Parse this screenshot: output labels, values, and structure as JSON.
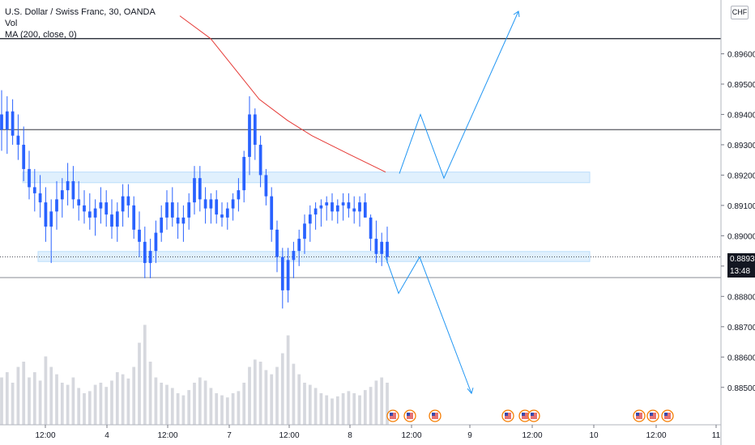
{
  "legend": {
    "title": "U.S. Dollar / Swiss Franc, 30, OANDA",
    "vol_label": "Vol",
    "ma_label": "MA (200, close, 0)"
  },
  "currency": "CHF",
  "price_tag": "0.88930",
  "time_tag": "13:48",
  "colors": {
    "up": "#2962ff",
    "volume": "#d6d8de",
    "ma": "#e53935",
    "drawing": "#2196f3",
    "zone": "#bbdefb",
    "hline": "#131722"
  },
  "chart_data": {
    "type": "candlestick",
    "y_axis": {
      "ticks": [
        "0.89600",
        "0.89500",
        "0.89400",
        "0.89300",
        "0.89200",
        "0.89100",
        "0.89000",
        "0.88900",
        "0.88800",
        "0.88700",
        "0.88600",
        "0.88500"
      ],
      "tick_values": [
        0.896,
        0.895,
        0.894,
        0.893,
        0.892,
        0.891,
        0.89,
        0.889,
        0.888,
        0.887,
        0.886,
        0.885
      ],
      "range": [
        0.8843,
        0.8974
      ]
    },
    "x_axis": {
      "ticks": [
        "12:00",
        "4",
        "12:00",
        "7",
        "12:00",
        "8",
        "12:00",
        "9",
        "12:00",
        "10",
        "12:00",
        "11"
      ]
    },
    "last_price": 0.8893,
    "horizontal_lines": [
      0.8965,
      0.8935,
      0.88862
    ],
    "dotted_line": 0.8893,
    "zones": [
      {
        "top": 0.8921,
        "bottom": 0.89175
      },
      {
        "top": 0.88948,
        "bottom": 0.88915
      }
    ],
    "bull_path": [
      0.89205,
      0.894,
      0.8919,
      0.8974
    ],
    "bear_path": [
      0.8893,
      0.8881,
      0.8893,
      0.8848
    ],
    "ma_series": [
      0.89725,
      0.8965,
      0.8955,
      0.8945,
      0.8938,
      0.8933,
      0.8927,
      0.8921
    ],
    "ohlc": [
      [
        0.894,
        0.8948,
        0.8928,
        0.8935
      ],
      [
        0.8935,
        0.8946,
        0.8927,
        0.8941
      ],
      [
        0.8941,
        0.8945,
        0.893,
        0.8933
      ],
      [
        0.8933,
        0.894,
        0.8925,
        0.893
      ],
      [
        0.893,
        0.8936,
        0.8918,
        0.8922
      ],
      [
        0.8922,
        0.8928,
        0.8912,
        0.8916
      ],
      [
        0.8916,
        0.8922,
        0.8908,
        0.8914
      ],
      [
        0.8914,
        0.892,
        0.8906,
        0.8911
      ],
      [
        0.8911,
        0.8916,
        0.8898,
        0.8903
      ],
      [
        0.8903,
        0.8912,
        0.8891,
        0.8908
      ],
      [
        0.8908,
        0.8918,
        0.8902,
        0.8912
      ],
      [
        0.8912,
        0.8919,
        0.8906,
        0.8915
      ],
      [
        0.8915,
        0.8924,
        0.891,
        0.8918
      ],
      [
        0.8918,
        0.8923,
        0.8909,
        0.8912
      ],
      [
        0.8912,
        0.8918,
        0.8905,
        0.891
      ],
      [
        0.891,
        0.8915,
        0.8904,
        0.8908
      ],
      [
        0.8908,
        0.8914,
        0.8902,
        0.8906
      ],
      [
        0.8906,
        0.8912,
        0.89,
        0.8909
      ],
      [
        0.8909,
        0.8916,
        0.8904,
        0.8911
      ],
      [
        0.8911,
        0.8915,
        0.8903,
        0.8907
      ],
      [
        0.8907,
        0.8912,
        0.8899,
        0.8903
      ],
      [
        0.8903,
        0.8911,
        0.8898,
        0.8908
      ],
      [
        0.8908,
        0.8917,
        0.8903,
        0.8913
      ],
      [
        0.8913,
        0.8917,
        0.8906,
        0.891
      ],
      [
        0.891,
        0.8913,
        0.8899,
        0.8902
      ],
      [
        0.8902,
        0.8908,
        0.8893,
        0.8898
      ],
      [
        0.8898,
        0.8903,
        0.8886,
        0.8891
      ],
      [
        0.8891,
        0.8899,
        0.8886,
        0.8895
      ],
      [
        0.8895,
        0.8905,
        0.8891,
        0.8901
      ],
      [
        0.8901,
        0.891,
        0.8898,
        0.8906
      ],
      [
        0.8906,
        0.8915,
        0.8902,
        0.8911
      ],
      [
        0.8911,
        0.8916,
        0.8903,
        0.8906
      ],
      [
        0.8906,
        0.8911,
        0.8899,
        0.8904
      ],
      [
        0.8904,
        0.891,
        0.8898,
        0.8906
      ],
      [
        0.8906,
        0.8914,
        0.8902,
        0.8911
      ],
      [
        0.8911,
        0.8923,
        0.8907,
        0.8919
      ],
      [
        0.8919,
        0.8923,
        0.8908,
        0.8912
      ],
      [
        0.8912,
        0.8916,
        0.8904,
        0.8909
      ],
      [
        0.8909,
        0.8914,
        0.8904,
        0.8912
      ],
      [
        0.8912,
        0.8915,
        0.8904,
        0.8907
      ],
      [
        0.8907,
        0.8911,
        0.8903,
        0.8906
      ],
      [
        0.8906,
        0.8911,
        0.8902,
        0.8909
      ],
      [
        0.8909,
        0.8914,
        0.8905,
        0.8912
      ],
      [
        0.8912,
        0.8919,
        0.8908,
        0.8915
      ],
      [
        0.8915,
        0.8928,
        0.8911,
        0.8926
      ],
      [
        0.8926,
        0.8946,
        0.892,
        0.894
      ],
      [
        0.894,
        0.8942,
        0.8925,
        0.893
      ],
      [
        0.893,
        0.8933,
        0.8916,
        0.892
      ],
      [
        0.892,
        0.8922,
        0.891,
        0.8913
      ],
      [
        0.8913,
        0.8916,
        0.8898,
        0.8902
      ],
      [
        0.8902,
        0.8905,
        0.8888,
        0.8893
      ],
      [
        0.8893,
        0.8896,
        0.8876,
        0.8882
      ],
      [
        0.8882,
        0.8896,
        0.8878,
        0.8892
      ],
      [
        0.8892,
        0.8898,
        0.8886,
        0.8895
      ],
      [
        0.8895,
        0.8902,
        0.889,
        0.8899
      ],
      [
        0.8899,
        0.8907,
        0.8894,
        0.8904
      ],
      [
        0.8904,
        0.891,
        0.8898,
        0.8907
      ],
      [
        0.8907,
        0.8911,
        0.8902,
        0.8909
      ],
      [
        0.8909,
        0.8912,
        0.8903,
        0.891
      ],
      [
        0.891,
        0.8913,
        0.8905,
        0.8911
      ],
      [
        0.8911,
        0.8914,
        0.8905,
        0.8908
      ],
      [
        0.8908,
        0.8912,
        0.8904,
        0.891
      ],
      [
        0.891,
        0.8914,
        0.8905,
        0.8911
      ],
      [
        0.8911,
        0.8914,
        0.8906,
        0.8909
      ],
      [
        0.8909,
        0.8913,
        0.8904,
        0.8908
      ],
      [
        0.8908,
        0.8913,
        0.8903,
        0.8911
      ],
      [
        0.8911,
        0.8914,
        0.8906,
        0.8906
      ],
      [
        0.8906,
        0.8907,
        0.8895,
        0.8899
      ],
      [
        0.8899,
        0.8905,
        0.8891,
        0.8894
      ],
      [
        0.8894,
        0.8901,
        0.889,
        0.8898
      ],
      [
        0.8898,
        0.8903,
        0.8891,
        0.8893
      ]
    ],
    "volume": [
      0.45,
      0.5,
      0.4,
      0.55,
      0.6,
      0.45,
      0.5,
      0.42,
      0.65,
      0.55,
      0.48,
      0.4,
      0.38,
      0.45,
      0.35,
      0.3,
      0.32,
      0.38,
      0.4,
      0.36,
      0.42,
      0.5,
      0.48,
      0.44,
      0.55,
      0.78,
      0.95,
      0.6,
      0.45,
      0.4,
      0.38,
      0.35,
      0.3,
      0.28,
      0.33,
      0.4,
      0.45,
      0.42,
      0.35,
      0.3,
      0.28,
      0.26,
      0.3,
      0.32,
      0.4,
      0.55,
      0.62,
      0.6,
      0.52,
      0.48,
      0.55,
      0.68,
      0.85,
      0.58,
      0.48,
      0.4,
      0.38,
      0.35,
      0.3,
      0.28,
      0.25,
      0.27,
      0.3,
      0.32,
      0.3,
      0.28,
      0.33,
      0.36,
      0.42,
      0.45,
      0.4
    ]
  }
}
